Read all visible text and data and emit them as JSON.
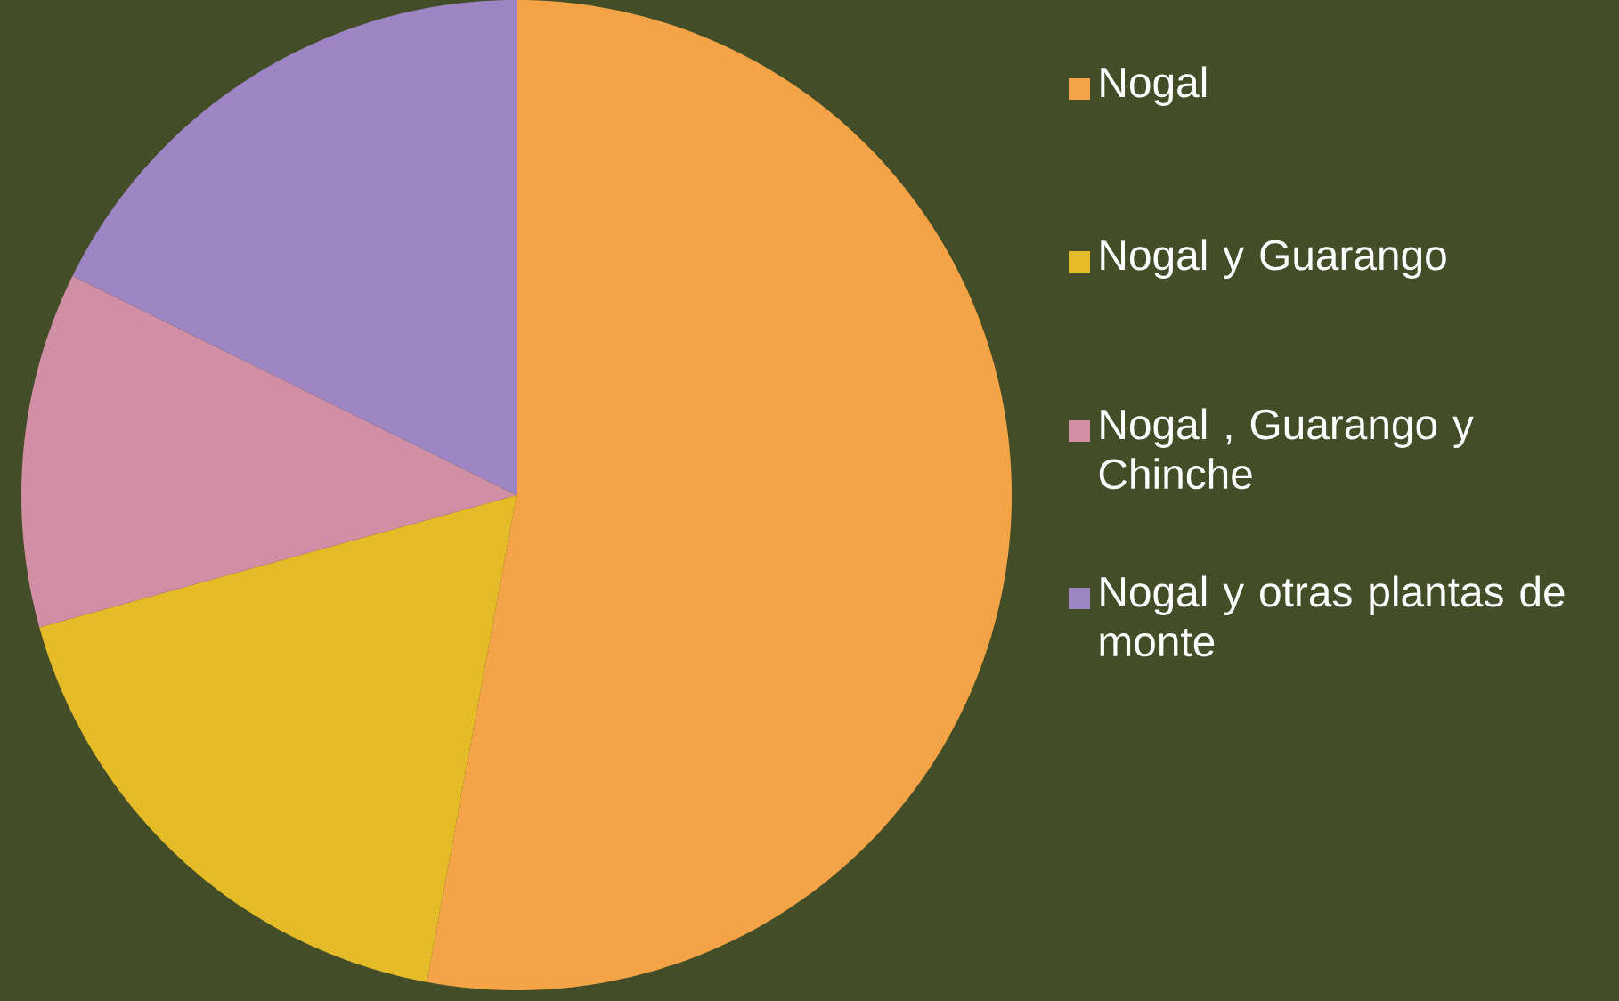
{
  "chart_data": {
    "type": "pie",
    "legend": "right",
    "categories": [
      "Nogal",
      "Nogal y Guarango",
      "Nogal , Guarango y Chinche",
      "Nogal y otras plantas de monte"
    ],
    "values": [
      52.9,
      17.8,
      11.6,
      17.7
    ],
    "colors": [
      "#f4a347",
      "#e5bb27",
      "#d08fa4",
      "#9e86c4"
    ]
  }
}
